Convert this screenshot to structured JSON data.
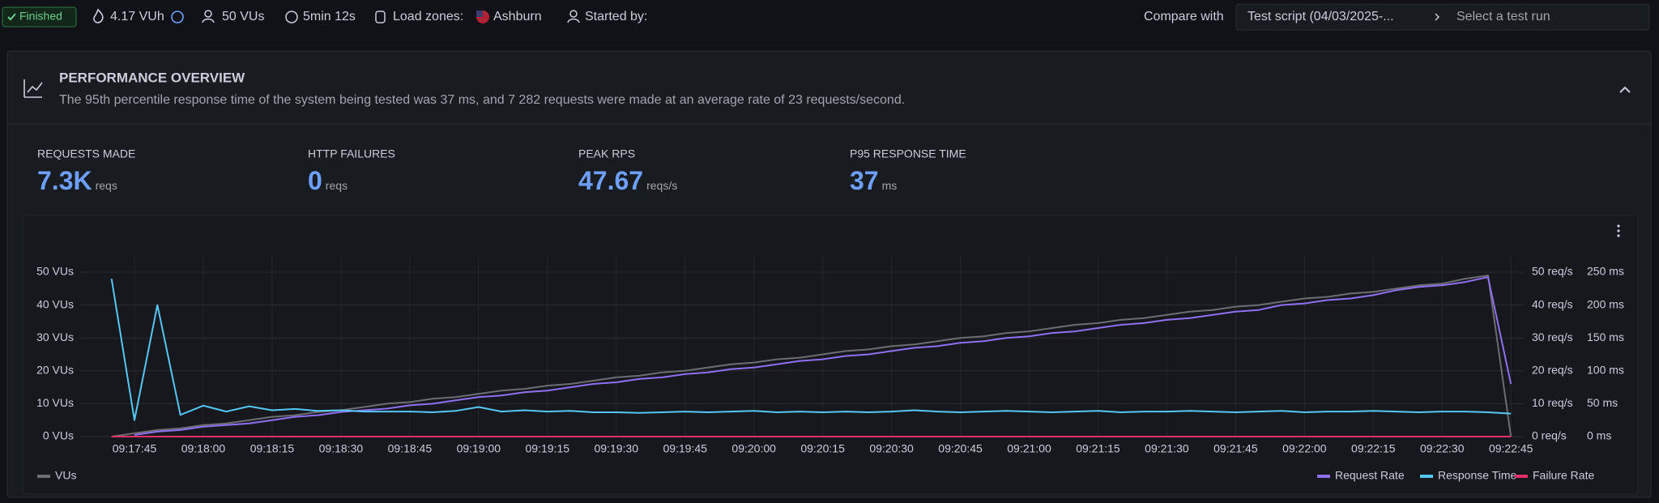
{
  "header": {
    "status": "Finished",
    "vuh": "4.17 VUh",
    "vus": "50 VUs",
    "duration": "5min 12s",
    "load_zones_label": "Load zones:",
    "load_zone": "Ashburn",
    "started_by_label": "Started by:",
    "compare_label": "Compare with",
    "compare_script": "Test script (04/03/2025-...",
    "compare_placeholder": "Select a test run"
  },
  "overview": {
    "title": "PERFORMANCE OVERVIEW",
    "description": "The 95th percentile response time of the system being tested was 37 ms, and 7 282 requests were made at an average rate of 23 requests/second."
  },
  "stats": [
    {
      "label": "REQUESTS MADE",
      "value": "7.3K",
      "unit": "reqs"
    },
    {
      "label": "HTTP FAILURES",
      "value": "0",
      "unit": "reqs"
    },
    {
      "label": "PEAK RPS",
      "value": "47.67",
      "unit": "reqs/s"
    },
    {
      "label": "P95 RESPONSE TIME",
      "value": "37",
      "unit": "ms"
    }
  ],
  "chart_data": {
    "type": "line",
    "categories": [
      null,
      "09:17:45",
      null,
      null,
      "09:18:00",
      null,
      null,
      "09:18:15",
      null,
      null,
      "09:18:30",
      null,
      null,
      "09:18:45",
      null,
      null,
      "09:19:00",
      null,
      null,
      "09:19:15",
      null,
      null,
      "09:19:30",
      null,
      null,
      "09:19:45",
      null,
      null,
      "09:20:00",
      null,
      null,
      "09:20:15",
      null,
      null,
      "09:20:30",
      null,
      null,
      "09:20:45",
      null,
      null,
      "09:21:00",
      null,
      null,
      "09:21:15",
      null,
      null,
      "09:21:30",
      null,
      null,
      "09:21:45",
      null,
      null,
      "09:22:00",
      null,
      null,
      "09:22:15",
      null,
      null,
      "09:22:30",
      null,
      null,
      "09:22:45"
    ],
    "ylim": [
      0,
      50
    ],
    "yticks": [
      {
        "value": 0,
        "label": "0 VUs"
      },
      {
        "value": 10,
        "label": "10 VUs"
      },
      {
        "value": 20,
        "label": "20 VUs"
      },
      {
        "value": 30,
        "label": "30 VUs"
      },
      {
        "value": 40,
        "label": "40 VUs"
      },
      {
        "value": 50,
        "label": "50 VUs"
      }
    ],
    "y2lim": [
      0,
      50
    ],
    "y2ticks": [
      {
        "value": 0,
        "label": "0 req/s"
      },
      {
        "value": 10,
        "label": "10 req/s"
      },
      {
        "value": 20,
        "label": "20 req/s"
      },
      {
        "value": 30,
        "label": "30 req/s"
      },
      {
        "value": 40,
        "label": "40 req/s"
      },
      {
        "value": 50,
        "label": "50 req/s"
      }
    ],
    "y3lim": [
      0,
      250
    ],
    "y3ticks": [
      {
        "value": 0,
        "label": "0 ms"
      },
      {
        "value": 50,
        "label": "50 ms"
      },
      {
        "value": 100,
        "label": "100 ms"
      },
      {
        "value": 150,
        "label": "150 ms"
      },
      {
        "value": 200,
        "label": "200 ms"
      },
      {
        "value": 250,
        "label": "250 ms"
      }
    ],
    "grid": true,
    "series": [
      {
        "name": "VUs",
        "color": "#6b6d72",
        "axis": "y",
        "values": [
          0,
          1,
          2,
          2.5,
          3.5,
          4,
          5,
          6,
          6.5,
          7.5,
          8,
          9,
          10,
          10.5,
          11.5,
          12,
          13,
          14,
          14.5,
          15.5,
          16,
          17,
          18,
          18.5,
          19.5,
          20,
          21,
          22,
          22.5,
          23.5,
          24,
          25,
          26,
          26.5,
          27.5,
          28,
          29,
          30,
          30.5,
          31.5,
          32,
          33,
          34,
          34.5,
          35.5,
          36,
          37,
          38,
          38.5,
          39.5,
          40,
          41,
          42,
          42.5,
          43.5,
          44,
          45,
          46,
          46.5,
          48,
          49,
          0
        ]
      },
      {
        "name": "Request Rate",
        "color": "#8f6ff2",
        "axis": "y2",
        "values": [
          null,
          0.5,
          1.5,
          2,
          3,
          3.5,
          4,
          5,
          6,
          6.5,
          7.5,
          8,
          8.5,
          9.5,
          10,
          11,
          12,
          12.5,
          13.5,
          14,
          15,
          16,
          16.5,
          17.5,
          18,
          19,
          19.5,
          20.5,
          21,
          22,
          23,
          23.5,
          24.5,
          25,
          26,
          27,
          27.5,
          28.5,
          29,
          30,
          30.5,
          31.5,
          32,
          33,
          34,
          34.5,
          35.5,
          36,
          37,
          38,
          38.5,
          40,
          40.5,
          41.5,
          42,
          43,
          44.5,
          45.5,
          46,
          47,
          48.5,
          16
        ]
      },
      {
        "name": "Response Time",
        "color": "#56c6f2",
        "axis": "y3",
        "values": [
          240,
          25,
          200,
          33,
          47,
          38,
          46,
          40,
          42,
          39,
          40,
          38,
          38,
          38,
          37,
          39,
          45,
          38,
          40,
          38,
          39,
          37,
          37,
          36,
          37,
          38,
          37,
          38,
          39,
          37,
          38,
          37,
          38,
          37,
          38,
          40,
          38,
          37,
          38,
          39,
          38,
          37,
          38,
          39,
          37,
          38,
          38,
          39,
          38,
          37,
          38,
          39,
          37,
          38,
          38,
          39,
          38,
          37,
          38,
          38,
          37,
          35
        ]
      },
      {
        "name": "Failure Rate",
        "color": "#e0306a",
        "axis": "y2",
        "values": [
          0,
          0,
          0,
          0,
          0,
          0,
          0,
          0,
          0,
          0,
          0,
          0,
          0,
          0,
          0,
          0,
          0,
          0,
          0,
          0,
          0,
          0,
          0,
          0,
          0,
          0,
          0,
          0,
          0,
          0,
          0,
          0,
          0,
          0,
          0,
          0,
          0,
          0,
          0,
          0,
          0,
          0,
          0,
          0,
          0,
          0,
          0,
          0,
          0,
          0,
          0,
          0,
          0,
          0,
          0,
          0,
          0,
          0,
          0,
          0,
          0,
          0
        ]
      }
    ]
  }
}
